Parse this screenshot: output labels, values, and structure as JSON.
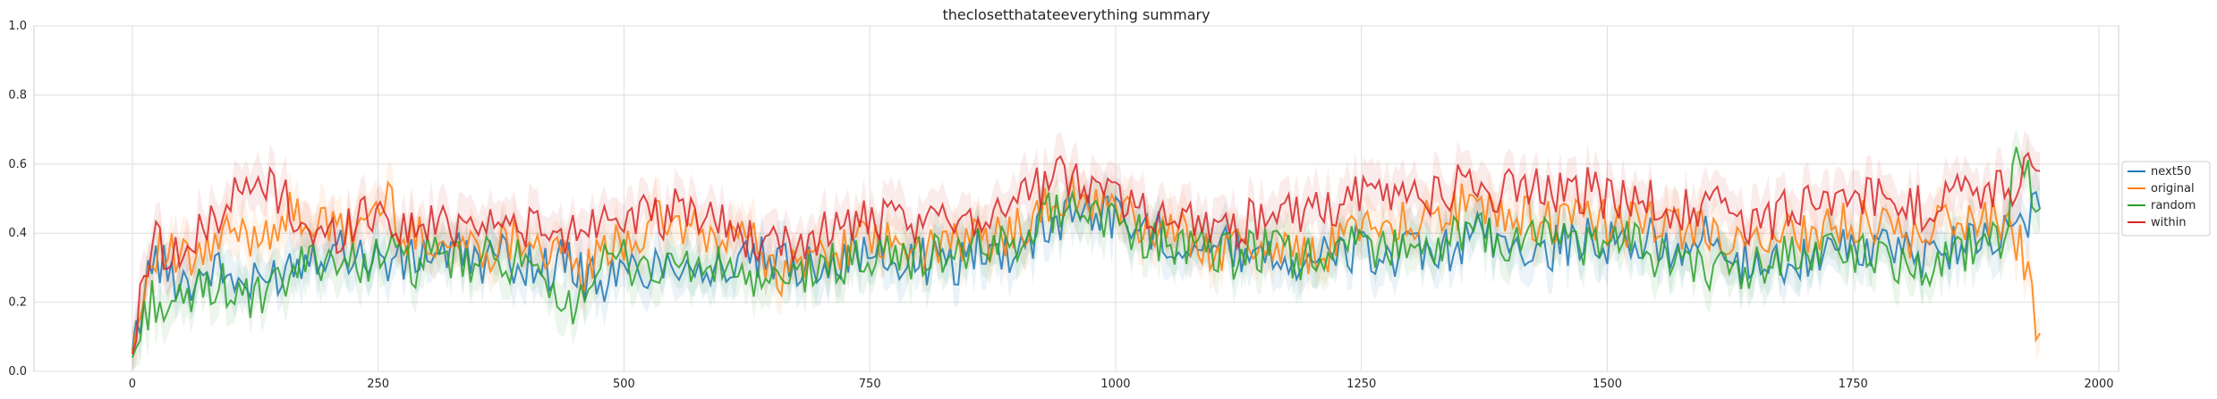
{
  "chart_data": {
    "type": "line",
    "title": "theclosetthatateeverything summary",
    "xlabel": "",
    "ylabel": "",
    "xlim": [
      -100,
      2020
    ],
    "ylim": [
      0,
      1
    ],
    "x_ticks": [
      0,
      250,
      500,
      750,
      1000,
      1250,
      1500,
      1750,
      2000
    ],
    "y_ticks": [
      0.0,
      0.2,
      0.4,
      0.6,
      0.8,
      1.0
    ],
    "x_tick_labels": [
      "0",
      "250",
      "500",
      "750",
      "1000",
      "1250",
      "1500",
      "1750",
      "2000"
    ],
    "y_tick_labels": [
      "0.0",
      "0.2",
      "0.4",
      "0.6",
      "0.8",
      "1.0"
    ],
    "grid": true,
    "legend_position": "center-right-outside",
    "x_step": 20,
    "series": [
      {
        "name": "next50",
        "color": "#1f77b4",
        "values": [
          0.06,
          0.33,
          0.28,
          0.26,
          0.3,
          0.27,
          0.24,
          0.27,
          0.31,
          0.34,
          0.36,
          0.35,
          0.33,
          0.32,
          0.31,
          0.35,
          0.34,
          0.33,
          0.32,
          0.33,
          0.31,
          0.3,
          0.32,
          0.27,
          0.26,
          0.28,
          0.3,
          0.31,
          0.33,
          0.3,
          0.29,
          0.31,
          0.32,
          0.3,
          0.31,
          0.32,
          0.33,
          0.34,
          0.33,
          0.31,
          0.32,
          0.31,
          0.31,
          0.37,
          0.33,
          0.37,
          0.4,
          0.44,
          0.48,
          0.46,
          0.45,
          0.42,
          0.4,
          0.39,
          0.37,
          0.36,
          0.35,
          0.36,
          0.34,
          0.33,
          0.32,
          0.33,
          0.35,
          0.34,
          0.33,
          0.34,
          0.32,
          0.35,
          0.4,
          0.38,
          0.37,
          0.36,
          0.35,
          0.37,
          0.38,
          0.37,
          0.36,
          0.38,
          0.36,
          0.37,
          0.38,
          0.33,
          0.31,
          0.3,
          0.32,
          0.34,
          0.33,
          0.35,
          0.36,
          0.35,
          0.34,
          0.33,
          0.36,
          0.37,
          0.38,
          0.42,
          0.41,
          0.47
        ]
      },
      {
        "name": "original",
        "color": "#ff7f0e",
        "values": [
          0.05,
          0.36,
          0.33,
          0.31,
          0.35,
          0.4,
          0.39,
          0.42,
          0.45,
          0.44,
          0.41,
          0.4,
          0.45,
          0.5,
          0.38,
          0.4,
          0.36,
          0.37,
          0.35,
          0.38,
          0.4,
          0.36,
          0.31,
          0.29,
          0.34,
          0.38,
          0.4,
          0.44,
          0.42,
          0.39,
          0.37,
          0.42,
          0.34,
          0.28,
          0.31,
          0.34,
          0.36,
          0.38,
          0.37,
          0.35,
          0.34,
          0.36,
          0.38,
          0.37,
          0.39,
          0.42,
          0.45,
          0.48,
          0.51,
          0.49,
          0.47,
          0.43,
          0.41,
          0.4,
          0.38,
          0.36,
          0.35,
          0.37,
          0.36,
          0.35,
          0.34,
          0.36,
          0.42,
          0.45,
          0.44,
          0.43,
          0.45,
          0.47,
          0.48,
          0.46,
          0.44,
          0.45,
          0.43,
          0.44,
          0.45,
          0.43,
          0.42,
          0.44,
          0.41,
          0.4,
          0.42,
          0.38,
          0.37,
          0.34,
          0.39,
          0.41,
          0.4,
          0.42,
          0.43,
          0.41,
          0.4,
          0.39,
          0.42,
          0.44,
          0.43,
          0.45,
          0.36,
          0.11
        ]
      },
      {
        "name": "random",
        "color": "#2ca02c",
        "values": [
          0.04,
          0.22,
          0.16,
          0.22,
          0.26,
          0.24,
          0.2,
          0.22,
          0.27,
          0.32,
          0.34,
          0.3,
          0.33,
          0.35,
          0.3,
          0.32,
          0.33,
          0.3,
          0.32,
          0.33,
          0.31,
          0.21,
          0.17,
          0.26,
          0.3,
          0.32,
          0.31,
          0.29,
          0.31,
          0.3,
          0.29,
          0.29,
          0.23,
          0.25,
          0.28,
          0.3,
          0.31,
          0.32,
          0.33,
          0.34,
          0.33,
          0.34,
          0.35,
          0.34,
          0.36,
          0.39,
          0.43,
          0.47,
          0.49,
          0.46,
          0.44,
          0.4,
          0.38,
          0.37,
          0.35,
          0.34,
          0.33,
          0.35,
          0.34,
          0.33,
          0.34,
          0.3,
          0.38,
          0.37,
          0.36,
          0.38,
          0.35,
          0.38,
          0.4,
          0.38,
          0.37,
          0.39,
          0.4,
          0.38,
          0.36,
          0.38,
          0.37,
          0.35,
          0.33,
          0.34,
          0.31,
          0.27,
          0.29,
          0.32,
          0.34,
          0.33,
          0.35,
          0.36,
          0.34,
          0.32,
          0.31,
          0.3,
          0.34,
          0.36,
          0.35,
          0.39,
          0.63,
          0.47
        ]
      },
      {
        "name": "within",
        "color": "#d62728",
        "values": [
          0.05,
          0.4,
          0.34,
          0.35,
          0.44,
          0.5,
          0.52,
          0.54,
          0.48,
          0.4,
          0.38,
          0.43,
          0.47,
          0.45,
          0.4,
          0.43,
          0.42,
          0.44,
          0.45,
          0.41,
          0.43,
          0.39,
          0.38,
          0.43,
          0.45,
          0.47,
          0.44,
          0.43,
          0.48,
          0.45,
          0.43,
          0.4,
          0.36,
          0.35,
          0.38,
          0.4,
          0.42,
          0.44,
          0.43,
          0.42,
          0.41,
          0.44,
          0.46,
          0.45,
          0.47,
          0.51,
          0.53,
          0.55,
          0.57,
          0.54,
          0.52,
          0.48,
          0.46,
          0.45,
          0.44,
          0.43,
          0.42,
          0.44,
          0.45,
          0.46,
          0.45,
          0.47,
          0.5,
          0.52,
          0.51,
          0.53,
          0.5,
          0.52,
          0.55,
          0.53,
          0.52,
          0.54,
          0.52,
          0.51,
          0.53,
          0.5,
          0.49,
          0.51,
          0.48,
          0.47,
          0.49,
          0.45,
          0.44,
          0.42,
          0.47,
          0.49,
          0.48,
          0.5,
          0.51,
          0.49,
          0.48,
          0.47,
          0.5,
          0.52,
          0.51,
          0.53,
          0.55,
          0.58
        ]
      }
    ]
  }
}
